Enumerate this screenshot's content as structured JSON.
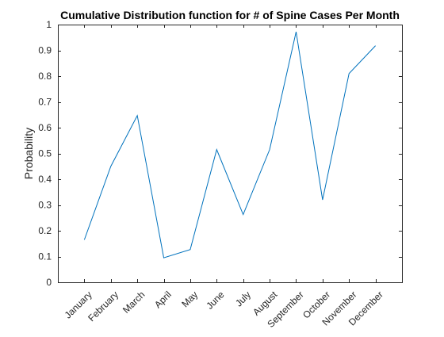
{
  "chart_data": {
    "type": "line",
    "title": "Cumulative Distribution function for # of Spine Cases Per Month",
    "xlabel": "",
    "ylabel": "Probability",
    "categories": [
      "January",
      "February",
      "March",
      "April",
      "May",
      "June",
      "July",
      "August",
      "September",
      "October",
      "November",
      "December"
    ],
    "series": [
      {
        "color": "#0072BD",
        "values": [
          0.165,
          0.45,
          0.647,
          0.095,
          0.127,
          0.515,
          0.263,
          0.515,
          0.972,
          0.32,
          0.81,
          0.918
        ]
      }
    ],
    "ylim": [
      0,
      1
    ],
    "yticks": [
      "0",
      "0.1",
      "0.2",
      "0.3",
      "0.4",
      "0.5",
      "0.6",
      "0.7",
      "0.8",
      "0.9",
      "1"
    ],
    "grid": false,
    "legend": "none",
    "box": true
  }
}
